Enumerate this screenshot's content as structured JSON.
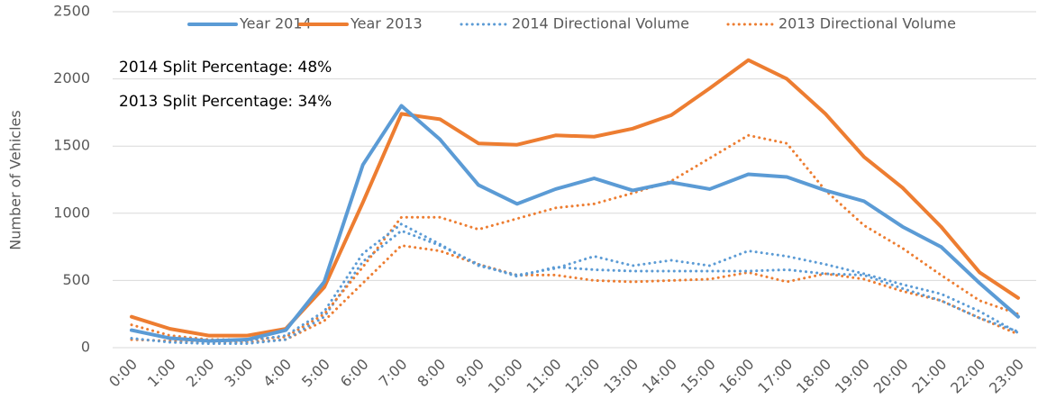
{
  "chart_data": {
    "type": "line",
    "y_label": "Number of Vehicles",
    "annotations": [
      "2014 Split Percentage: 48%",
      "2013 Split Percentage: 34%"
    ],
    "categories": [
      "0:00",
      "1:00",
      "2:00",
      "3:00",
      "4:00",
      "5:00",
      "6:00",
      "7:00",
      "8:00",
      "9:00",
      "10:00",
      "11:00",
      "12:00",
      "13:00",
      "14:00",
      "15:00",
      "16:00",
      "17:00",
      "18:00",
      "19:00",
      "20:00",
      "21:00",
      "22:00",
      "23:00"
    ],
    "ylim": [
      0,
      2500
    ],
    "yticks": [
      0,
      500,
      1000,
      1500,
      2000,
      2500
    ],
    "grid": true,
    "series": [
      {
        "name": "Year 2014",
        "color": "#5b9bd5",
        "line_style": "solid",
        "values": [
          130,
          70,
          50,
          60,
          130,
          490,
          1360,
          1800,
          1550,
          1210,
          1070,
          1180,
          1260,
          1170,
          1230,
          1180,
          1290,
          1270,
          1170,
          1090,
          900,
          750,
          480,
          230
        ]
      },
      {
        "name": "Year 2013",
        "color": "#ed7d31",
        "line_style": "solid",
        "values": [
          230,
          140,
          90,
          90,
          140,
          450,
          1080,
          1740,
          1700,
          1520,
          1510,
          1580,
          1570,
          1630,
          1730,
          1930,
          2140,
          2000,
          1740,
          1420,
          1190,
          900,
          560,
          370
        ]
      },
      {
        "name": "2014 Directional Volume",
        "color": "#5b9bd5",
        "line_style": "dotted",
        "values": [
          130,
          70,
          50,
          50,
          90,
          270,
          700,
          920,
          770,
          610,
          540,
          590,
          680,
          610,
          650,
          610,
          720,
          680,
          620,
          550,
          470,
          400,
          270,
          110
        ]
      },
      {
        "name": "2013 Directional Volume",
        "color": "#ed7d31",
        "line_style": "dotted",
        "values": [
          170,
          90,
          60,
          60,
          80,
          250,
          600,
          970,
          970,
          880,
          960,
          1040,
          1070,
          1150,
          1240,
          1410,
          1580,
          1520,
          1170,
          910,
          740,
          540,
          350,
          250
        ]
      },
      {
        "color": "#5b9bd5",
        "line_style": "dotted",
        "values": [
          70,
          40,
          30,
          30,
          60,
          230,
          640,
          870,
          760,
          620,
          530,
          600,
          580,
          570,
          570,
          570,
          570,
          580,
          550,
          540,
          440,
          350,
          220,
          120
        ]
      },
      {
        "color": "#ed7d31",
        "line_style": "dotted",
        "values": [
          60,
          50,
          40,
          40,
          60,
          200,
          480,
          760,
          720,
          620,
          540,
          540,
          500,
          490,
          500,
          510,
          560,
          490,
          550,
          510,
          420,
          350,
          220,
          100
        ]
      }
    ]
  }
}
